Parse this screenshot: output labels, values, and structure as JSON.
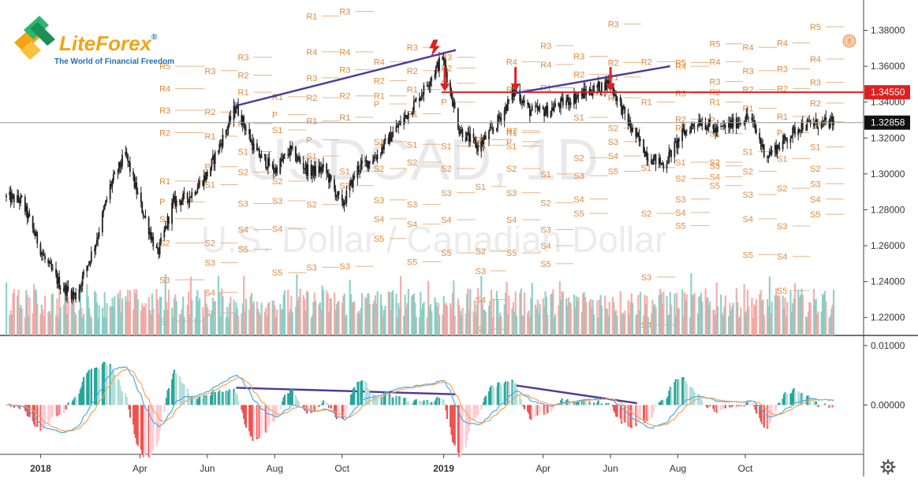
{
  "logo": {
    "brand_part1": "Lite",
    "brand_part2": "Forex",
    "registered": "®",
    "tagline": "The World of Financial Freedom"
  },
  "watermark": {
    "ticker": "USDCAD, 1D",
    "name": "U.S. Dollar / Canadian Dollar"
  },
  "colors": {
    "candle": "#222222",
    "trendline": "#4b3a9e",
    "pivot_label": "#e08b3c",
    "pivot_line": "#e8b48a",
    "resistance_line": "#e02020",
    "arrow": "#e02020",
    "volume_up": "#7ec9bf",
    "volume_down": "#f3a09c",
    "macd_line": "#4aa8e8",
    "signal_line": "#f5a25a",
    "hist_pos_strong": "#26a69a",
    "hist_pos_weak": "#b2dfdb",
    "hist_neg_strong": "#ef5350",
    "hist_neg_weak": "#ffcdd2",
    "current_price_bg": "#111111",
    "level_price_bg": "#e02020"
  },
  "price_axis": {
    "labels": [
      "1.38000",
      "1.36000",
      "1.34000",
      "1.32000",
      "1.30000",
      "1.28000",
      "1.26000",
      "1.24000",
      "1.22000"
    ],
    "values": [
      1.38,
      1.36,
      1.34,
      1.32,
      1.3,
      1.28,
      1.26,
      1.24,
      1.22
    ],
    "range": [
      1.21,
      1.389
    ],
    "level_label": "1.34550",
    "level_value": 1.3455,
    "current_label": "1.32858",
    "current_value": 1.32858
  },
  "indicator_axis": {
    "labels": [
      "0.01000",
      "0.00000"
    ],
    "values": [
      0.01,
      0.0
    ],
    "range": [
      -0.0083,
      0.0117
    ]
  },
  "time_axis": {
    "labels": [
      "2018",
      "Apr",
      "Jun",
      "Aug",
      "Oct",
      "2019",
      "Apr",
      "Jun",
      "Aug",
      "Oct"
    ],
    "bold": [
      true,
      false,
      false,
      false,
      false,
      true,
      false,
      false,
      false,
      false
    ]
  },
  "settings_icon": "gear-icon",
  "chart_data": {
    "type": "candlestick",
    "title": "USDCAD, 1D",
    "subtitle": "U.S. Dollar / Canadian Dollar",
    "x_range": [
      "2017-12-01",
      "2019-12-20"
    ],
    "ylim": [
      1.21,
      1.389
    ],
    "price_path": [
      [
        "2017-12-01",
        1.287
      ],
      [
        "2017-12-15",
        1.285
      ],
      [
        "2018-01-05",
        1.252
      ],
      [
        "2018-01-20",
        1.237
      ],
      [
        "2018-02-02",
        1.232
      ],
      [
        "2018-02-20",
        1.262
      ],
      [
        "2018-03-05",
        1.293
      ],
      [
        "2018-03-19",
        1.311
      ],
      [
        "2018-04-02",
        1.282
      ],
      [
        "2018-04-17",
        1.255
      ],
      [
        "2018-05-01",
        1.284
      ],
      [
        "2018-05-15",
        1.287
      ],
      [
        "2018-06-01",
        1.3
      ],
      [
        "2018-06-15",
        1.32
      ],
      [
        "2018-06-27",
        1.338
      ],
      [
        "2018-07-15",
        1.312
      ],
      [
        "2018-08-01",
        1.302
      ],
      [
        "2018-08-15",
        1.313
      ],
      [
        "2018-09-01",
        1.301
      ],
      [
        "2018-09-15",
        1.303
      ],
      [
        "2018-10-01",
        1.282
      ],
      [
        "2018-10-15",
        1.303
      ],
      [
        "2018-11-01",
        1.31
      ],
      [
        "2018-11-15",
        1.322
      ],
      [
        "2018-12-01",
        1.335
      ],
      [
        "2018-12-15",
        1.348
      ],
      [
        "2018-12-31",
        1.365
      ],
      [
        "2019-01-15",
        1.325
      ],
      [
        "2019-02-01",
        1.315
      ],
      [
        "2019-02-15",
        1.325
      ],
      [
        "2019-03-07",
        1.347
      ],
      [
        "2019-03-20",
        1.335
      ],
      [
        "2019-04-05",
        1.335
      ],
      [
        "2019-04-20",
        1.34
      ],
      [
        "2019-05-05",
        1.344
      ],
      [
        "2019-05-31",
        1.351
      ],
      [
        "2019-06-20",
        1.325
      ],
      [
        "2019-07-05",
        1.31
      ],
      [
        "2019-07-19",
        1.305
      ],
      [
        "2019-08-05",
        1.322
      ],
      [
        "2019-08-20",
        1.33
      ],
      [
        "2019-09-05",
        1.324
      ],
      [
        "2019-09-20",
        1.328
      ],
      [
        "2019-10-05",
        1.332
      ],
      [
        "2019-10-20",
        1.31
      ],
      [
        "2019-11-01",
        1.316
      ],
      [
        "2019-11-20",
        1.327
      ],
      [
        "2019-12-20",
        1.32858
      ]
    ],
    "trendlines": [
      {
        "panel": "price",
        "from": [
          "2018-06-27",
          1.338
        ],
        "to": [
          "2019-01-12",
          1.369
        ]
      },
      {
        "panel": "price",
        "from": [
          "2019-03-07",
          1.345
        ],
        "to": [
          "2019-07-25",
          1.36
        ]
      },
      {
        "panel": "macd",
        "from": [
          "2018-06-27",
          0.0029
        ],
        "to": [
          "2019-01-12",
          0.0018
        ]
      },
      {
        "panel": "macd",
        "from": [
          "2019-03-07",
          0.0033
        ],
        "to": [
          "2019-06-25",
          0.0003
        ]
      }
    ],
    "resistance_level": 1.3455,
    "signal_arrows": [
      {
        "date": "2019-01-02",
        "type": "down"
      },
      {
        "date": "2019-03-07",
        "type": "down"
      },
      {
        "date": "2019-06-01",
        "type": "down"
      }
    ],
    "lightning_marker": {
      "date": "2018-12-24",
      "price": 1.366
    },
    "pivot_columns": [
      {
        "start": "2018-04-20",
        "end": "2018-05-31",
        "levels": [
          [
            "R5",
            1.36
          ],
          [
            "R4",
            1.3475
          ],
          [
            "R3",
            1.3355
          ],
          [
            "R2",
            1.323
          ],
          [
            "R1",
            1.296
          ],
          [
            "P",
            1.2845
          ],
          [
            "S1",
            1.275
          ],
          [
            "S2",
            1.2615
          ],
          [
            "S3",
            1.241
          ],
          [
            "S4",
            1.218
          ]
        ]
      },
      {
        "start": "2018-05-31",
        "end": "2018-06-30",
        "levels": [
          [
            "R3",
            1.3575
          ],
          [
            "R2",
            1.3345
          ],
          [
            "R1",
            1.321
          ],
          [
            "P",
            1.304
          ],
          [
            "S1",
            1.294
          ],
          [
            "S2",
            1.2615
          ],
          [
            "S3",
            1.2505
          ],
          [
            "S4",
            1.234
          ],
          [
            "S5",
            1.2225
          ]
        ]
      },
      {
        "start": "2018-06-30",
        "end": "2018-07-31",
        "levels": [
          [
            "R3",
            1.365
          ],
          [
            "R2",
            1.355
          ],
          [
            "R1",
            1.3455
          ],
          [
            "P",
            1.328
          ],
          [
            "S1",
            1.3125
          ],
          [
            "S2",
            1.301
          ],
          [
            "S3",
            1.2835
          ],
          [
            "S4",
            1.269
          ],
          [
            "S5",
            1.258
          ]
        ]
      },
      {
        "start": "2018-07-31",
        "end": "2018-08-31",
        "levels": [
          [
            "R1",
            1.343
          ],
          [
            "P",
            1.333
          ],
          [
            "S1",
            1.3245
          ],
          [
            "S2",
            1.296
          ],
          [
            "S3",
            1.285
          ],
          [
            "S4",
            1.2695
          ],
          [
            "S5",
            1.245
          ]
        ]
      },
      {
        "start": "2018-08-31",
        "end": "2018-09-30",
        "levels": [
          [
            "R1",
            1.388
          ],
          [
            "R4",
            1.368
          ],
          [
            "R3",
            1.3535
          ],
          [
            "R2",
            1.3425
          ],
          [
            "R1",
            1.3295
          ],
          [
            "P",
            1.319
          ],
          [
            "S1",
            1.31
          ],
          [
            "S2",
            1.283
          ],
          [
            "S3",
            1.248
          ]
        ]
      },
      {
        "start": "2018-09-30",
        "end": "2018-10-31",
        "levels": [
          [
            "R3",
            1.3905
          ],
          [
            "R4",
            1.368
          ],
          [
            "R3",
            1.358
          ],
          [
            "R2",
            1.3435
          ],
          [
            "R1",
            1.3315
          ],
          [
            "S1",
            1.3015
          ],
          [
            "S2",
            1.2935
          ],
          [
            "S3",
            1.2485
          ]
        ]
      },
      {
        "start": "2018-10-31",
        "end": "2018-11-30",
        "levels": [
          [
            "R4",
            1.3625
          ],
          [
            "R2",
            1.352
          ],
          [
            "R1",
            1.3435
          ],
          [
            "P",
            1.339
          ],
          [
            "S1",
            1.318
          ],
          [
            "S2",
            1.303
          ],
          [
            "S3",
            1.2855
          ],
          [
            "S4",
            1.275
          ],
          [
            "S5",
            1.264
          ]
        ]
      },
      {
        "start": "2018-11-30",
        "end": "2018-12-31",
        "levels": [
          [
            "R3",
            1.3705
          ],
          [
            "R2",
            1.3575
          ],
          [
            "R1",
            1.347
          ],
          [
            "R1",
            1.3335
          ],
          [
            "S1",
            1.3165
          ],
          [
            "S2",
            1.3065
          ],
          [
            "S3",
            1.283
          ],
          [
            "S4",
            1.272
          ],
          [
            "S5",
            1.251
          ]
        ]
      },
      {
        "start": "2018-12-31",
        "end": "2019-01-31",
        "levels": [
          [
            "R3",
            1.365
          ],
          [
            "R2",
            1.359
          ],
          [
            "R1",
            1.3505
          ],
          [
            "P",
            1.34
          ],
          [
            "S1",
            1.3155
          ],
          [
            "S2",
            1.303
          ],
          [
            "S3",
            1.2895
          ],
          [
            "S4",
            1.2745
          ],
          [
            "S5",
            1.256
          ]
        ]
      },
      {
        "start": "2019-01-31",
        "end": "2019-02-28",
        "levels": [
          [
            "R2",
            1.319
          ],
          [
            "R1",
            1.316
          ],
          [
            "S1",
            1.293
          ],
          [
            "S2",
            1.257
          ],
          [
            "S3",
            1.246
          ],
          [
            "S4",
            1.23
          ],
          [
            "S5",
            1.2135
          ]
        ]
      },
      {
        "start": "2019-02-28",
        "end": "2019-03-31",
        "levels": [
          [
            "R4",
            1.3625
          ],
          [
            "R3",
            1.347
          ],
          [
            "R2",
            1.324
          ],
          [
            "R1",
            1.323
          ],
          [
            "P",
            1.318
          ],
          [
            "S1",
            1.3155
          ],
          [
            "S2",
            1.303
          ],
          [
            "S3",
            1.2895
          ],
          [
            "S4",
            1.2745
          ],
          [
            "S5",
            1.256
          ]
        ]
      },
      {
        "start": "2019-03-31",
        "end": "2019-04-30",
        "levels": [
          [
            "R3",
            1.3715
          ],
          [
            "R4",
            1.361
          ],
          [
            "R1",
            1.348
          ],
          [
            "S1",
            1.3
          ],
          [
            "S2",
            1.284
          ],
          [
            "S3",
            1.269
          ],
          [
            "S4",
            1.26
          ],
          [
            "S5",
            1.25
          ]
        ]
      },
      {
        "start": "2019-04-30",
        "end": "2019-05-31",
        "levels": [
          [
            "R3",
            1.3655
          ],
          [
            "R2",
            1.3555
          ],
          [
            "P",
            1.344
          ],
          [
            "S1",
            1.3315
          ],
          [
            "S2",
            1.309
          ],
          [
            "S3",
            1.299
          ],
          [
            "S4",
            1.286
          ],
          [
            "S5",
            1.278
          ]
        ]
      },
      {
        "start": "2019-05-31",
        "end": "2019-06-30",
        "levels": [
          [
            "R3",
            1.3835
          ],
          [
            "R2",
            1.362
          ],
          [
            "R1",
            1.354
          ],
          [
            "R1",
            1.3425
          ],
          [
            "S2",
            1.3255
          ],
          [
            "S3",
            1.318
          ],
          [
            "S4",
            1.31
          ],
          [
            "S5",
            1.3015
          ]
        ]
      },
      {
        "start": "2019-06-30",
        "end": "2019-07-31",
        "levels": [
          [
            "R2",
            1.3625
          ],
          [
            "R1",
            1.34
          ],
          [
            "S1",
            1.3035
          ],
          [
            "S2",
            1.278
          ],
          [
            "S3",
            1.2425
          ],
          [
            "S4",
            1.216
          ]
        ]
      },
      {
        "start": "2019-07-31",
        "end": "2019-08-31",
        "levels": [
          [
            "R5",
            1.362
          ],
          [
            "R4",
            1.36
          ],
          [
            "R3",
            1.345
          ],
          [
            "R2",
            1.3305
          ],
          [
            "R1",
            1.3255
          ],
          [
            "S1",
            1.3065
          ],
          [
            "S2",
            1.2975
          ],
          [
            "S3",
            1.286
          ],
          [
            "S4",
            1.2785
          ],
          [
            "S5",
            1.2712
          ]
        ]
      },
      {
        "start": "2019-08-31",
        "end": "2019-09-30",
        "levels": [
          [
            "R5",
            1.3725
          ],
          [
            "R4",
            1.3625
          ],
          [
            "R3",
            1.3515
          ],
          [
            "R2",
            1.3455
          ],
          [
            "R1",
            1.34
          ],
          [
            "P",
            1.33
          ],
          [
            "S1",
            1.3225
          ],
          [
            "S2",
            1.3065
          ],
          [
            "S3",
            1.3045
          ],
          [
            "S4",
            1.2985
          ],
          [
            "S5",
            1.2935
          ]
        ]
      },
      {
        "start": "2019-09-30",
        "end": "2019-10-31",
        "levels": [
          [
            "R4",
            1.3705
          ],
          [
            "R3",
            1.3575
          ],
          [
            "R2",
            1.347
          ],
          [
            "R1",
            1.3365
          ],
          [
            "S1",
            1.3125
          ],
          [
            "S2",
            1.3015
          ],
          [
            "S3",
            1.2885
          ],
          [
            "S4",
            1.275
          ],
          [
            "S5",
            1.255
          ]
        ]
      },
      {
        "start": "2019-10-31",
        "end": "2019-11-30",
        "levels": [
          [
            "R4",
            1.373
          ],
          [
            "R3",
            1.3585
          ],
          [
            "R2",
            1.3475
          ],
          [
            "R1",
            1.332
          ],
          [
            "P",
            1.323
          ],
          [
            "S1",
            1.3085
          ],
          [
            "S2",
            1.292
          ],
          [
            "S3",
            1.271
          ],
          [
            "S4",
            1.254
          ],
          [
            "S5",
            1.235
          ]
        ]
      },
      {
        "start": "2019-11-30",
        "end": "2019-12-31",
        "levels": [
          [
            "R5",
            1.382
          ],
          [
            "R4",
            1.364
          ],
          [
            "R3",
            1.351
          ],
          [
            "R2",
            1.3395
          ],
          [
            "R1",
            1.329
          ],
          [
            "S1",
            1.315
          ],
          [
            "S2",
            1.303
          ],
          [
            "S3",
            1.2945
          ],
          [
            "S4",
            1.286
          ],
          [
            "S5",
            1.2775
          ]
        ]
      }
    ]
  }
}
